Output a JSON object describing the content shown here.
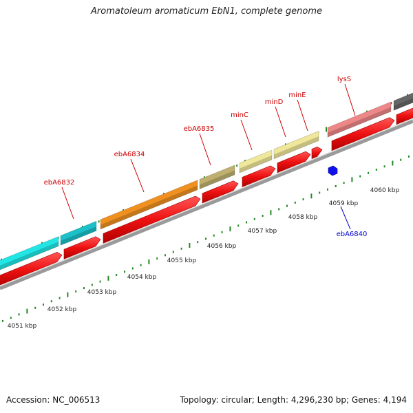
{
  "title": "Aromatoleum aromaticum EbN1, complete genome",
  "footer": {
    "accession": "Accession: NC_006513",
    "summary": "Topology: circular; Length: 4,296,230 bp; Genes: 4,194"
  },
  "colors": {
    "gene_label": "#cc0000",
    "feature_label": "#0000cc",
    "cds": "#ee1111",
    "backbone": "#888888",
    "tick": "#228822"
  },
  "scale_labels": [
    "4051 kbp",
    "4052 kbp",
    "4053 kbp",
    "4054 kbp",
    "4055 kbp",
    "4056 kbp",
    "4057 kbp",
    "4058 kbp",
    "4059 kbp",
    "4060 kbp"
  ],
  "gene_labels": [
    "ebA6832",
    "ebA6834",
    "ebA6835",
    "minC",
    "minD",
    "minE",
    "lysS"
  ],
  "feature_labels": [
    "ebA6840"
  ],
  "genes": [
    {
      "color": "#22e6e6"
    },
    {
      "color": "#1cc0c8"
    },
    {
      "color": "#f09020"
    },
    {
      "color": "#bfb070"
    },
    {
      "color": "#efe79a"
    },
    {
      "color": "#efe79a"
    },
    {
      "color": "#ee8888"
    },
    {
      "color": "#666666"
    }
  ]
}
